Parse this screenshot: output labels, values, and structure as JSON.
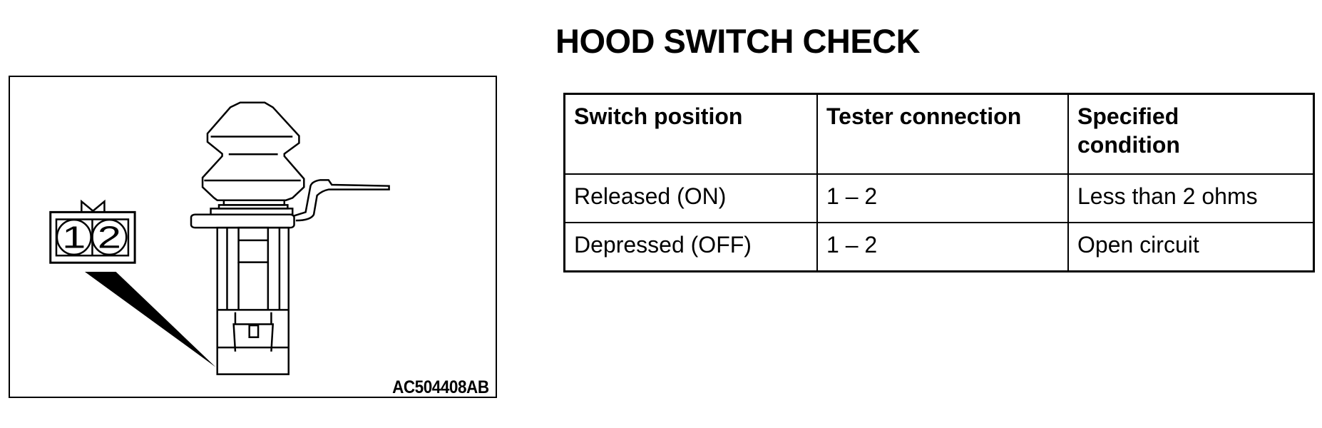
{
  "figure": {
    "id_label": "AC504408AB",
    "connector_pins": [
      "1",
      "2"
    ]
  },
  "title": "HOOD SWITCH CHECK",
  "table": {
    "headers": [
      "Switch position",
      "Tester connection",
      "Specified condition"
    ],
    "rows": [
      [
        "Released (ON)",
        "1 – 2",
        "Less than 2 ohms"
      ],
      [
        "Depressed (OFF)",
        "1 – 2",
        "Open circuit"
      ]
    ]
  }
}
